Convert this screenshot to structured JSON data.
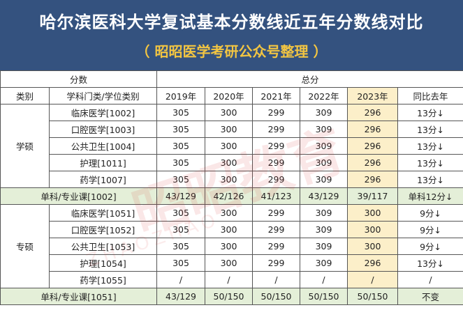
{
  "header": {
    "title": "哈尔滨医科大学复试基本分数线近五年分数线对比",
    "subtitle": "（ 昭昭医学考研公众号整理 ）"
  },
  "table": {
    "group_header": {
      "left": "分数",
      "right": "总分"
    },
    "col_headers": [
      "类别",
      "学科门类/学位类别",
      "2019年",
      "2020年",
      "2021年",
      "2022年",
      "2023年",
      "同比去年"
    ],
    "xueshuo": {
      "label": "学硕",
      "rows": [
        {
          "subject": "临床医学[1002]",
          "v": [
            "305",
            "300",
            "299",
            "309",
            "296"
          ],
          "change": "13分↓"
        },
        {
          "subject": "口腔医学[1003]",
          "v": [
            "305",
            "300",
            "299",
            "309",
            "296"
          ],
          "change": "13分↓"
        },
        {
          "subject": "公共卫生[1004]",
          "v": [
            "305",
            "300",
            "299",
            "309",
            "296"
          ],
          "change": "13分↓"
        },
        {
          "subject": "护理[1011]",
          "v": [
            "305",
            "300",
            "299",
            "309",
            "296"
          ],
          "change": "13分↓"
        },
        {
          "subject": "药学[1007]",
          "v": [
            "305",
            "300",
            "299",
            "309",
            "296"
          ],
          "change": "13分↓"
        }
      ],
      "single": {
        "label": "单科/专业课[1002]",
        "v": [
          "43/129",
          "42/126",
          "41/123",
          "43/129",
          "39/117"
        ],
        "change": "单科12分↓"
      }
    },
    "zhuanshuo": {
      "label": "专硕",
      "rows": [
        {
          "subject": "临床医学[1051]",
          "v": [
            "305",
            "300",
            "299",
            "309",
            "300"
          ],
          "change": "9分↓"
        },
        {
          "subject": "口腔医学[1052]",
          "v": [
            "305",
            "300",
            "299",
            "309",
            "300"
          ],
          "change": "9分↓"
        },
        {
          "subject": "公共卫生[1053]",
          "v": [
            "305",
            "300",
            "299",
            "309",
            "300"
          ],
          "change": "9分↓"
        },
        {
          "subject": "护理[1054]",
          "v": [
            "305",
            "300",
            "299",
            "309",
            "296"
          ],
          "change": "13分↓"
        },
        {
          "subject": "药学[1055]",
          "v": [
            "/",
            "/",
            "/",
            "/",
            "/"
          ],
          "change": "/"
        }
      ],
      "single": {
        "label": "单科/专业课[1051]",
        "v": [
          "43/129",
          "50/150",
          "50/150",
          "50/150",
          "50/150"
        ],
        "change": "不变"
      }
    }
  },
  "colors": {
    "header_bg": "#34527f",
    "subtitle": "#f2c542",
    "highlight_2023": "#fcefc9",
    "single_row_bg": "#e4efd8"
  }
}
